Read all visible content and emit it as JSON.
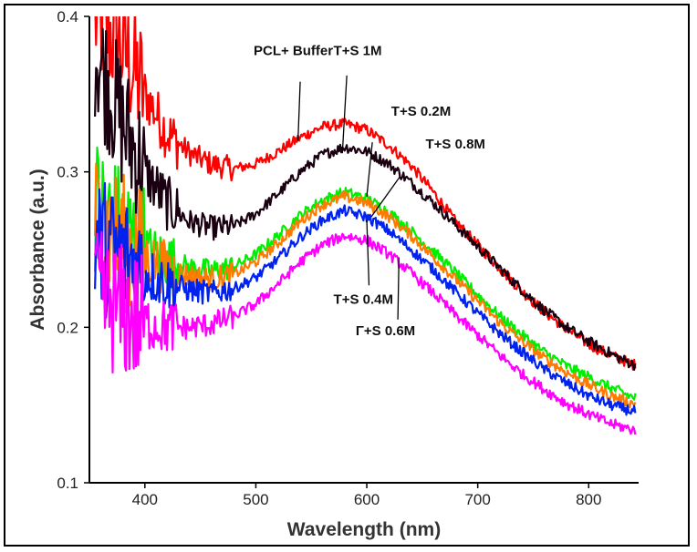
{
  "chart_data": {
    "type": "line",
    "title": "",
    "xlabel": "Wavelength (nm)",
    "ylabel": "Absorbance (a.u.)",
    "xlim": [
      350,
      845
    ],
    "ylim": [
      0.1,
      0.4
    ],
    "x_ticks": [
      400,
      500,
      600,
      700,
      800
    ],
    "y_ticks": [
      0.1,
      0.2,
      0.3,
      0.4
    ],
    "x_tick_labels": [
      "400",
      "500",
      "600",
      "700",
      "800"
    ],
    "y_tick_labels": [
      "0.1",
      "0.2",
      "0.3",
      "0.4"
    ],
    "grid": false,
    "legend": "none",
    "series": [
      {
        "name": "PCL+ Buffer",
        "color": "#ff0000",
        "x": [
          355,
          380,
          400,
          420,
          440,
          460,
          480,
          500,
          520,
          540,
          560,
          580,
          600,
          620,
          640,
          660,
          680,
          700,
          720,
          740,
          760,
          780,
          800,
          820,
          840
        ],
        "y": [
          0.4,
          0.38,
          0.35,
          0.325,
          0.312,
          0.305,
          0.302,
          0.305,
          0.313,
          0.322,
          0.329,
          0.331,
          0.327,
          0.317,
          0.304,
          0.287,
          0.268,
          0.253,
          0.238,
          0.223,
          0.21,
          0.199,
          0.189,
          0.182,
          0.176
        ]
      },
      {
        "name": "T+S 1M",
        "color": "#1a0010",
        "x": [
          355,
          380,
          400,
          420,
          440,
          460,
          480,
          500,
          520,
          540,
          560,
          580,
          600,
          620,
          640,
          660,
          680,
          700,
          720,
          740,
          760,
          780,
          800,
          820,
          840
        ],
        "y": [
          0.38,
          0.33,
          0.3,
          0.28,
          0.268,
          0.264,
          0.265,
          0.273,
          0.286,
          0.3,
          0.311,
          0.316,
          0.313,
          0.305,
          0.293,
          0.28,
          0.266,
          0.252,
          0.238,
          0.224,
          0.211,
          0.2,
          0.191,
          0.183,
          0.176
        ]
      },
      {
        "name": "T+S 0.2M",
        "color": "#00ee00",
        "x": [
          355,
          380,
          400,
          420,
          440,
          460,
          480,
          500,
          520,
          540,
          560,
          580,
          600,
          620,
          640,
          660,
          680,
          700,
          720,
          740,
          760,
          780,
          800,
          820,
          840
        ],
        "y": [
          0.28,
          0.26,
          0.25,
          0.243,
          0.238,
          0.236,
          0.239,
          0.247,
          0.259,
          0.272,
          0.282,
          0.287,
          0.283,
          0.274,
          0.262,
          0.249,
          0.235,
          0.221,
          0.207,
          0.195,
          0.184,
          0.175,
          0.168,
          0.161,
          0.155
        ]
      },
      {
        "name": "T+S 0.8M",
        "color": "#ff7a00",
        "x": [
          355,
          380,
          400,
          420,
          440,
          460,
          480,
          500,
          520,
          540,
          560,
          580,
          600,
          620,
          640,
          660,
          680,
          700,
          720,
          740,
          760,
          780,
          800,
          820,
          840
        ],
        "y": [
          0.27,
          0.255,
          0.245,
          0.238,
          0.233,
          0.231,
          0.234,
          0.242,
          0.254,
          0.268,
          0.279,
          0.284,
          0.28,
          0.271,
          0.259,
          0.245,
          0.231,
          0.217,
          0.203,
          0.191,
          0.18,
          0.171,
          0.163,
          0.156,
          0.151
        ]
      },
      {
        "name": "T+S 0.4M",
        "color": "#0022ee",
        "x": [
          355,
          380,
          400,
          420,
          440,
          460,
          480,
          500,
          520,
          540,
          560,
          580,
          600,
          620,
          640,
          660,
          680,
          700,
          720,
          740,
          760,
          780,
          800,
          820,
          840
        ],
        "y": [
          0.255,
          0.245,
          0.235,
          0.228,
          0.224,
          0.222,
          0.225,
          0.232,
          0.244,
          0.258,
          0.269,
          0.275,
          0.271,
          0.262,
          0.25,
          0.237,
          0.223,
          0.209,
          0.196,
          0.184,
          0.173,
          0.164,
          0.156,
          0.15,
          0.146
        ]
      },
      {
        "name": "T+S 0.6M",
        "color": "#ff00ff",
        "x": [
          355,
          380,
          400,
          420,
          440,
          460,
          480,
          500,
          520,
          540,
          560,
          580,
          600,
          620,
          640,
          660,
          680,
          700,
          720,
          740,
          760,
          780,
          800,
          820,
          840
        ],
        "y": [
          0.22,
          0.21,
          0.203,
          0.2,
          0.2,
          0.202,
          0.207,
          0.215,
          0.228,
          0.242,
          0.253,
          0.259,
          0.256,
          0.247,
          0.235,
          0.222,
          0.208,
          0.195,
          0.182,
          0.17,
          0.16,
          0.151,
          0.144,
          0.138,
          0.134
        ]
      }
    ],
    "annotations": [
      {
        "text": "PCL+ Buffer",
        "series": "PCL+ Buffer",
        "label_at": [
          498,
          0.375
        ],
        "arrow_from": [
          540,
          0.358
        ],
        "arrow_to": [
          538,
          0.32
        ]
      },
      {
        "text": "T+S 1M",
        "series": "T+S 1M",
        "label_at": [
          570,
          0.375
        ],
        "arrow_from": [
          582,
          0.362
        ],
        "arrow_to": [
          578,
          0.312
        ]
      },
      {
        "text": "T+S 0.2M",
        "series": "T+S 0.2M",
        "label_at": [
          622,
          0.336
        ],
        "arrow_from": [
          605,
          0.319
        ],
        "arrow_to": [
          600,
          0.284
        ]
      },
      {
        "text": "T+S 0.8M",
        "series": "T+S 0.8M",
        "label_at": [
          653,
          0.315
        ],
        "arrow_from": [
          630,
          0.297
        ],
        "arrow_to": [
          604,
          0.271
        ]
      },
      {
        "text": "T+S 0.4M",
        "series": "T+S 0.4M",
        "label_at": [
          570,
          0.215
        ],
        "arrow_from": [
          602,
          0.227
        ],
        "arrow_to": [
          600,
          0.269
        ]
      },
      {
        "text": "Γ+S 0.6M",
        "series": "T+S 0.6M",
        "label_at": [
          590,
          0.195
        ],
        "arrow_from": [
          628,
          0.205
        ],
        "arrow_to": [
          629,
          0.245
        ]
      }
    ]
  }
}
